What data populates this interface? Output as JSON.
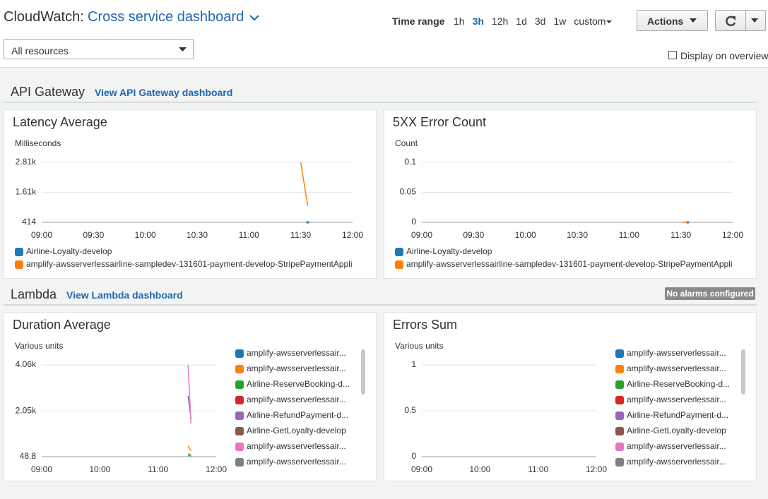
{
  "header": {
    "service": "CloudWatch:",
    "dashboard": "Cross service dashboard",
    "time_range_label": "Time range",
    "time_ranges": [
      {
        "label": "1h"
      },
      {
        "label": "3h",
        "selected": true
      },
      {
        "label": "12h"
      },
      {
        "label": "1d"
      },
      {
        "label": "3d"
      },
      {
        "label": "1w"
      },
      {
        "label": "custom"
      }
    ],
    "actions": "Actions",
    "resource_filter": "All resources",
    "display_on_overview": "Display on overview"
  },
  "sections": [
    {
      "title": "API Gateway",
      "link": "View API Gateway dashboard"
    },
    {
      "title": "Lambda",
      "link": "View Lambda dashboard",
      "badge": "No alarms configured"
    }
  ],
  "chart_data": [
    {
      "type": "line",
      "title": "Latency Average",
      "y_label": "Milliseconds",
      "grid": true,
      "legend": "bottom",
      "xlim": [
        "09:00",
        "12:00"
      ],
      "xticks": [
        "09:00",
        "09:30",
        "10:00",
        "10:30",
        "11:00",
        "11:30",
        "12:00"
      ],
      "ylim": [
        414,
        2810
      ],
      "yticks": [
        414,
        {
          "value": 1610,
          "label": "1.61k"
        },
        {
          "value": 2810,
          "label": "2.81k"
        }
      ],
      "series": [
        {
          "name": "Airline-Loyalty-develop",
          "color": "#1f77b4",
          "x": [
            "11:34"
          ],
          "values": [
            414
          ]
        },
        {
          "name": "amplify-awsserverlessairline-sampledev-131601-payment-develop-StripePaymentAppli",
          "color": "#ff7f0e",
          "x": [
            "11:30",
            "11:34"
          ],
          "values": [
            2810,
            1080
          ]
        }
      ]
    },
    {
      "type": "line",
      "title": "5XX Error Count",
      "y_label": "Count",
      "grid": true,
      "legend": "bottom",
      "xlim": [
        "09:00",
        "12:00"
      ],
      "xticks": [
        "09:00",
        "09:30",
        "10:00",
        "10:30",
        "11:00",
        "11:30",
        "12:00"
      ],
      "ylim": [
        0,
        0.1
      ],
      "yticks": [
        0,
        0.05,
        0.1
      ],
      "series": [
        {
          "name": "Airline-Loyalty-develop",
          "color": "#1f77b4",
          "x": [
            "11:34"
          ],
          "values": [
            0
          ]
        },
        {
          "name": "amplify-awsserverlessairline-sampledev-131601-payment-develop-StripePaymentAppli",
          "color": "#ff7f0e",
          "x": [
            "11:31",
            "11:34"
          ],
          "values": [
            0,
            0
          ]
        }
      ]
    },
    {
      "type": "line",
      "title": "Duration Average",
      "y_label": "Various units",
      "grid": true,
      "legend": "right",
      "xlim": [
        "09:00",
        "12:00"
      ],
      "xticks": [
        "09:00",
        "10:00",
        "11:00",
        "12:00"
      ],
      "ylim": [
        48.8,
        4060
      ],
      "yticks": [
        48.8,
        {
          "value": 2050,
          "label": "2.05k"
        },
        {
          "value": 4060,
          "label": "4.06k"
        }
      ],
      "series": [
        {
          "name": "amplify-awsserverlessair...",
          "color": "#1f77b4",
          "x": [],
          "values": []
        },
        {
          "name": "amplify-awsserverlessair...",
          "color": "#ff7f0e",
          "x": [
            "11:31",
            "11:34"
          ],
          "values": [
            520,
            300
          ]
        },
        {
          "name": "Airline-ReserveBooking-d...",
          "color": "#2ca02c",
          "x": [
            "11:31",
            "11:34"
          ],
          "values": [
            180,
            120
          ]
        },
        {
          "name": "amplify-awsserverlessair...",
          "color": "#d62728",
          "x": [],
          "values": []
        },
        {
          "name": "Airline-RefundPayment-d...",
          "color": "#9467bd",
          "x": [
            "11:31",
            "11:34"
          ],
          "values": [
            2700,
            1700
          ]
        },
        {
          "name": "Airline-GetLoyalty-develop",
          "color": "#8c564b",
          "x": [],
          "values": []
        },
        {
          "name": "amplify-awsserverlessair...",
          "color": "#e377c2",
          "x": [
            "11:31",
            "11:34"
          ],
          "values": [
            4060,
            1500
          ]
        },
        {
          "name": "amplify-awsserverlessair...",
          "color": "#7f7f7f",
          "x": [
            "11:31",
            "11:34"
          ],
          "values": [
            100,
            80
          ]
        }
      ]
    },
    {
      "type": "line",
      "title": "Errors Sum",
      "y_label": "Various units",
      "grid": true,
      "legend": "right",
      "xlim": [
        "09:00",
        "12:00"
      ],
      "xticks": [
        "09:00",
        "10:00",
        "11:00",
        "12:00"
      ],
      "ylim": [
        0,
        1
      ],
      "yticks": [
        0,
        0.5,
        1
      ],
      "series": [
        {
          "name": "amplify-awsserverlessair...",
          "color": "#1f77b4",
          "x": [],
          "values": []
        },
        {
          "name": "amplify-awsserverlessair...",
          "color": "#ff7f0e",
          "x": [],
          "values": []
        },
        {
          "name": "Airline-ReserveBooking-d...",
          "color": "#2ca02c",
          "x": [],
          "values": []
        },
        {
          "name": "amplify-awsserverlessair...",
          "color": "#d62728",
          "x": [],
          "values": []
        },
        {
          "name": "Airline-RefundPayment-d...",
          "color": "#9467bd",
          "x": [],
          "values": []
        },
        {
          "name": "Airline-GetLoyalty-develop",
          "color": "#8c564b",
          "x": [],
          "values": []
        },
        {
          "name": "amplify-awsserverlessair...",
          "color": "#e377c2",
          "x": [],
          "values": []
        },
        {
          "name": "amplify-awsserverlessair...",
          "color": "#7f7f7f",
          "x": [],
          "values": []
        }
      ]
    }
  ]
}
